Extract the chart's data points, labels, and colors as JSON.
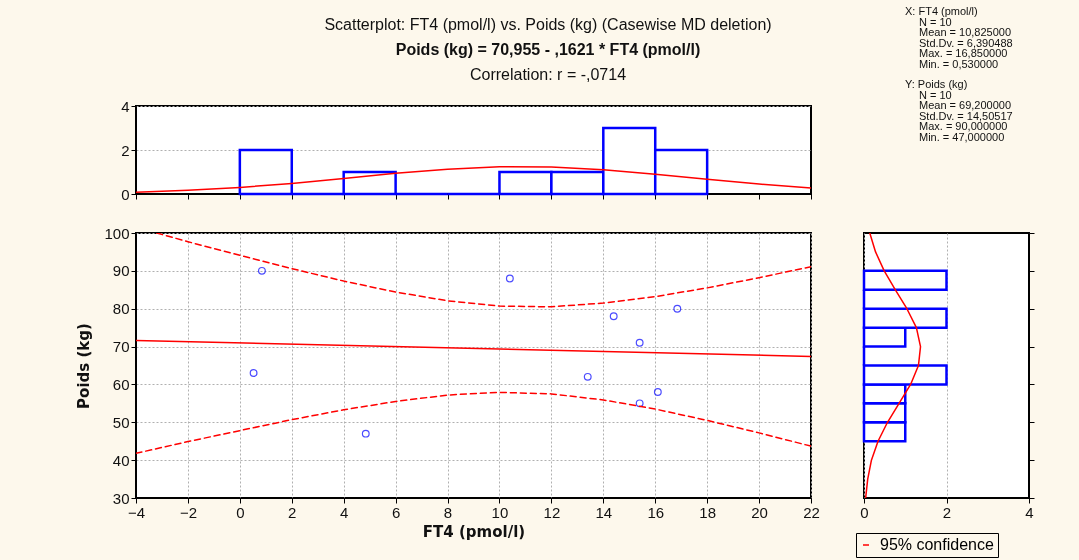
{
  "chart_data": [
    {
      "type": "histogram",
      "title": "Scatterplot: FT4 (pmol/l) vs. Poids (kg) (Casewise MD deletion)",
      "subtitle": "Poids (kg) = 70,955 - ,1621  * FT4 (pmol/l)",
      "annotations": [
        "Correlation: r = -,0714",
        "X:  FT4 (pmol/l)",
        "N = 10",
        "Mean = 10,825000",
        "Std.Dv. = 6,390488",
        "Max. = 16,850000",
        "Min. = 0,530000",
        "Y:  Poids (kg)",
        "N = 10",
        "Mean = 69,200000",
        "Std.Dv. = 14,50517",
        "Max. = 90,000000",
        "Min. = 47,000000"
      ],
      "bins": [
        0,
        2,
        4,
        6,
        8,
        10,
        12,
        14,
        16,
        18
      ],
      "values": [
        2,
        0,
        1,
        0,
        0,
        1,
        1,
        3,
        2
      ],
      "color": "#0000ff",
      "series": [
        {
          "type": "line",
          "color": "#ff0000",
          "x": [
            -4,
            -2,
            0,
            2,
            4,
            6,
            8,
            10,
            12,
            14,
            16,
            18,
            20,
            22
          ],
          "values": [
            0.08,
            0.17,
            0.3,
            0.48,
            0.71,
            0.94,
            1.13,
            1.24,
            1.23,
            1.1,
            0.9,
            0.67,
            0.45,
            0.27
          ]
        }
      ],
      "xlim": [
        -4,
        22
      ],
      "xticks": [
        -4,
        -2,
        0,
        2,
        4,
        6,
        8,
        10,
        12,
        14,
        16,
        18,
        20,
        22
      ],
      "ylim": [
        0,
        4
      ],
      "yticks": [
        0,
        2,
        4
      ],
      "grid": "y",
      "tick_labels": "y"
    },
    {
      "type": "scatter",
      "xlabel": "FT4 (pmol/l)",
      "ylabel": "Poids (kg)",
      "series": [
        {
          "type": "scatter",
          "color": "#0000ff",
          "marker": "circle",
          "x": [
            0.85,
            0.53,
            4.85,
            10.4,
            13.4,
            14.4,
            15.4,
            15.4,
            16.1,
            16.85
          ],
          "values": [
            90,
            63,
            47,
            88,
            62,
            78,
            71,
            55,
            58,
            80
          ]
        },
        {
          "type": "line",
          "color": "#ff0000",
          "x": [
            -4,
            22
          ],
          "values": [
            71.6,
            67.4
          ]
        },
        {
          "type": "line",
          "name": "95% confidence",
          "color": "#ff0000",
          "line_style": "dashed",
          "x": [
            -3.2,
            -2,
            0,
            2,
            4,
            6,
            8,
            10,
            12,
            14,
            16,
            18,
            20,
            22
          ],
          "values": [
            100,
            97.7,
            94.1,
            90.6,
            87.3,
            84.4,
            82.1,
            80.7,
            80.5,
            81.5,
            83.2,
            85.5,
            88.2,
            91.1
          ]
        },
        {
          "type": "line",
          "color": "#ff0000",
          "line_style": "dashed",
          "x": [
            -4,
            -2,
            0,
            2,
            4,
            6,
            8,
            10,
            12,
            14,
            16,
            18,
            20,
            22
          ],
          "values": [
            41.8,
            44.9,
            47.8,
            50.7,
            53.3,
            55.5,
            57.2,
            57.9,
            57.5,
            55.9,
            53.5,
            50.5,
            47.2,
            43.7
          ]
        }
      ],
      "xlim": [
        -4,
        22
      ],
      "xticks": [
        -4,
        -2,
        0,
        2,
        4,
        6,
        8,
        10,
        12,
        14,
        16,
        18,
        20,
        22
      ],
      "ylim": [
        30,
        100
      ],
      "yticks": [
        30,
        40,
        50,
        60,
        70,
        80,
        90,
        100
      ],
      "grid": true,
      "legend": "bottom right"
    },
    {
      "type": "histogram",
      "orientation": "horizontal",
      "bins": [
        45,
        50,
        55,
        60,
        65,
        70,
        75,
        80,
        85,
        90
      ],
      "values": [
        1,
        1,
        1,
        2,
        0,
        1,
        2,
        0,
        2
      ],
      "color": "#0000ff",
      "series": [
        {
          "type": "line",
          "color": "#ff0000",
          "x": [
            30,
            35,
            40,
            45,
            50,
            55,
            60,
            65,
            70,
            75,
            80,
            85,
            90,
            95,
            100
          ],
          "values": [
            0.04,
            0.09,
            0.18,
            0.34,
            0.57,
            0.85,
            1.13,
            1.32,
            1.37,
            1.27,
            1.04,
            0.76,
            0.49,
            0.28,
            0.14
          ]
        }
      ],
      "xlim": [
        0,
        4
      ],
      "xticks": [
        0,
        2,
        4
      ],
      "ylim": [
        30,
        100
      ],
      "yticks": [
        30,
        40,
        50,
        60,
        70,
        80,
        90,
        100
      ],
      "grid": "x",
      "tick_labels": "x"
    }
  ]
}
